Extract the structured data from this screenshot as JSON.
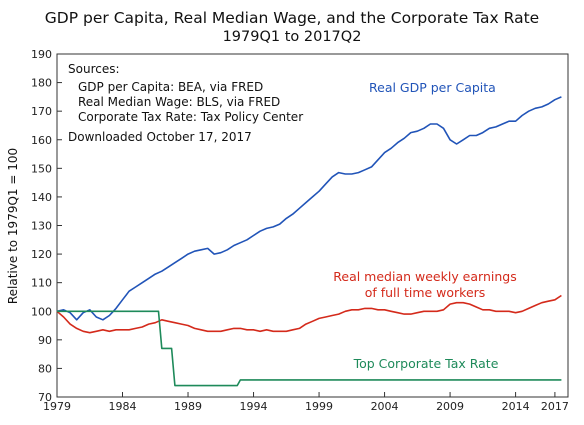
{
  "chart_data": {
    "type": "line",
    "title": "GDP per Capita, Real Median Wage, and the Corporate Tax Rate",
    "subtitle": "1979Q1 to 2017Q2",
    "ylabel": "Relative to 1979Q1 = 100",
    "xlabel": "",
    "xlim": [
      1979,
      2018
    ],
    "ylim": [
      70,
      190
    ],
    "x_ticks": [
      1979,
      1984,
      1989,
      1994,
      1999,
      2004,
      2009,
      2014,
      2017
    ],
    "y_ticks": [
      70,
      80,
      90,
      100,
      110,
      120,
      130,
      140,
      150,
      160,
      170,
      180,
      190
    ],
    "grid": false,
    "sources": {
      "heading": "Sources:",
      "lines": [
        "GDP per Capita:  BEA, via FRED",
        "Real Median Wage:  BLS, via FRED",
        "Corporate Tax Rate:  Tax Policy Center"
      ],
      "downloaded": "Downloaded October 17, 2017"
    },
    "series": [
      {
        "name": "Real GDP per Capita",
        "color": "#2154b8",
        "label_lines": [
          "Real GDP per Capita"
        ],
        "points": [
          [
            1979.0,
            100
          ],
          [
            1979.5,
            100.5
          ],
          [
            1980.0,
            99.5
          ],
          [
            1980.5,
            97
          ],
          [
            1981.0,
            99.5
          ],
          [
            1981.5,
            100.5
          ],
          [
            1982.0,
            98
          ],
          [
            1982.5,
            97
          ],
          [
            1983.0,
            98.5
          ],
          [
            1983.5,
            101
          ],
          [
            1984.0,
            104
          ],
          [
            1984.5,
            107
          ],
          [
            1985.0,
            108.5
          ],
          [
            1985.5,
            110
          ],
          [
            1986.0,
            111.5
          ],
          [
            1986.5,
            113
          ],
          [
            1987.0,
            114
          ],
          [
            1987.5,
            115.5
          ],
          [
            1988.0,
            117
          ],
          [
            1988.5,
            118.5
          ],
          [
            1989.0,
            120
          ],
          [
            1989.5,
            121
          ],
          [
            1990.0,
            121.5
          ],
          [
            1990.5,
            122
          ],
          [
            1991.0,
            120
          ],
          [
            1991.5,
            120.5
          ],
          [
            1992.0,
            121.5
          ],
          [
            1992.5,
            123
          ],
          [
            1993.0,
            124
          ],
          [
            1993.5,
            125
          ],
          [
            1994.0,
            126.5
          ],
          [
            1994.5,
            128
          ],
          [
            1995.0,
            129
          ],
          [
            1995.5,
            129.5
          ],
          [
            1996.0,
            130.5
          ],
          [
            1996.5,
            132.5
          ],
          [
            1997.0,
            134
          ],
          [
            1997.5,
            136
          ],
          [
            1998.0,
            138
          ],
          [
            1998.5,
            140
          ],
          [
            1999.0,
            142
          ],
          [
            1999.5,
            144.5
          ],
          [
            2000.0,
            147
          ],
          [
            2000.5,
            148.5
          ],
          [
            2001.0,
            148
          ],
          [
            2001.5,
            148
          ],
          [
            2002.0,
            148.5
          ],
          [
            2002.5,
            149.5
          ],
          [
            2003.0,
            150.5
          ],
          [
            2003.5,
            153
          ],
          [
            2004.0,
            155.5
          ],
          [
            2004.5,
            157
          ],
          [
            2005.0,
            159
          ],
          [
            2005.5,
            160.5
          ],
          [
            2006.0,
            162.5
          ],
          [
            2006.5,
            163
          ],
          [
            2007.0,
            164
          ],
          [
            2007.5,
            165.5
          ],
          [
            2008.0,
            165.5
          ],
          [
            2008.5,
            164
          ],
          [
            2009.0,
            160
          ],
          [
            2009.5,
            158.5
          ],
          [
            2010.0,
            160
          ],
          [
            2010.5,
            161.5
          ],
          [
            2011.0,
            161.5
          ],
          [
            2011.5,
            162.5
          ],
          [
            2012.0,
            164
          ],
          [
            2012.5,
            164.5
          ],
          [
            2013.0,
            165.5
          ],
          [
            2013.5,
            166.5
          ],
          [
            2014.0,
            166.5
          ],
          [
            2014.5,
            168.5
          ],
          [
            2015.0,
            170
          ],
          [
            2015.5,
            171
          ],
          [
            2016.0,
            171.5
          ],
          [
            2016.5,
            172.5
          ],
          [
            2017.0,
            174
          ],
          [
            2017.5,
            175
          ]
        ]
      },
      {
        "name": "Real median weekly earnings of full time workers",
        "color": "#d42a1b",
        "label_lines": [
          "Real median weekly earnings",
          "of full time workers"
        ],
        "points": [
          [
            1979.0,
            100
          ],
          [
            1979.5,
            98
          ],
          [
            1980.0,
            95.5
          ],
          [
            1980.5,
            94
          ],
          [
            1981.0,
            93
          ],
          [
            1981.5,
            92.5
          ],
          [
            1982.0,
            93
          ],
          [
            1982.5,
            93.5
          ],
          [
            1983.0,
            93
          ],
          [
            1983.5,
            93.5
          ],
          [
            1984.0,
            93.5
          ],
          [
            1984.5,
            93.5
          ],
          [
            1985.0,
            94
          ],
          [
            1985.5,
            94.5
          ],
          [
            1986.0,
            95.5
          ],
          [
            1986.5,
            96
          ],
          [
            1987.0,
            97
          ],
          [
            1987.5,
            96.5
          ],
          [
            1988.0,
            96
          ],
          [
            1988.5,
            95.5
          ],
          [
            1989.0,
            95
          ],
          [
            1989.5,
            94
          ],
          [
            1990.0,
            93.5
          ],
          [
            1990.5,
            93
          ],
          [
            1991.0,
            93
          ],
          [
            1991.5,
            93
          ],
          [
            1992.0,
            93.5
          ],
          [
            1992.5,
            94
          ],
          [
            1993.0,
            94
          ],
          [
            1993.5,
            93.5
          ],
          [
            1994.0,
            93.5
          ],
          [
            1994.5,
            93
          ],
          [
            1995.0,
            93.5
          ],
          [
            1995.5,
            93
          ],
          [
            1996.0,
            93
          ],
          [
            1996.5,
            93
          ],
          [
            1997.0,
            93.5
          ],
          [
            1997.5,
            94
          ],
          [
            1998.0,
            95.5
          ],
          [
            1998.5,
            96.5
          ],
          [
            1999.0,
            97.5
          ],
          [
            1999.5,
            98
          ],
          [
            2000.0,
            98.5
          ],
          [
            2000.5,
            99
          ],
          [
            2001.0,
            100
          ],
          [
            2001.5,
            100.5
          ],
          [
            2002.0,
            100.5
          ],
          [
            2002.5,
            101
          ],
          [
            2003.0,
            101
          ],
          [
            2003.5,
            100.5
          ],
          [
            2004.0,
            100.5
          ],
          [
            2004.5,
            100
          ],
          [
            2005.0,
            99.5
          ],
          [
            2005.5,
            99
          ],
          [
            2006.0,
            99
          ],
          [
            2006.5,
            99.5
          ],
          [
            2007.0,
            100
          ],
          [
            2007.5,
            100
          ],
          [
            2008.0,
            100
          ],
          [
            2008.5,
            100.5
          ],
          [
            2009.0,
            102.5
          ],
          [
            2009.5,
            103
          ],
          [
            2010.0,
            103
          ],
          [
            2010.5,
            102.5
          ],
          [
            2011.0,
            101.5
          ],
          [
            2011.5,
            100.5
          ],
          [
            2012.0,
            100.5
          ],
          [
            2012.5,
            100
          ],
          [
            2013.0,
            100
          ],
          [
            2013.5,
            100
          ],
          [
            2014.0,
            99.5
          ],
          [
            2014.5,
            100
          ],
          [
            2015.0,
            101
          ],
          [
            2015.5,
            102
          ],
          [
            2016.0,
            103
          ],
          [
            2016.5,
            103.5
          ],
          [
            2017.0,
            104
          ],
          [
            2017.5,
            105.5
          ]
        ]
      },
      {
        "name": "Top Corporate Tax Rate",
        "color": "#1e8a5a",
        "label_lines": [
          "Top Corporate Tax Rate"
        ],
        "points": [
          [
            1979.0,
            100
          ],
          [
            1986.75,
            100
          ],
          [
            1987.0,
            87
          ],
          [
            1987.75,
            87
          ],
          [
            1988.0,
            74
          ],
          [
            1992.75,
            74
          ],
          [
            1993.0,
            76
          ],
          [
            2017.5,
            76
          ]
        ]
      }
    ]
  }
}
